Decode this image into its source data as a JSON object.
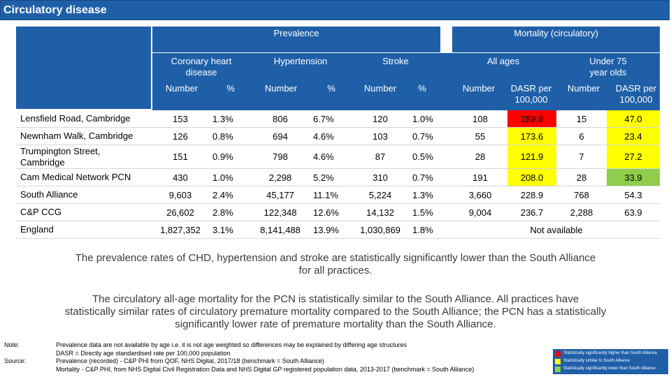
{
  "title": "Circulatory disease",
  "headers": {
    "prevalence": "Prevalence",
    "mortality": "Mortality (circulatory)",
    "chd_line1": "Coronary heart",
    "chd_line2": "disease",
    "hypertension": "Hypertension",
    "stroke": "Stroke",
    "all_ages": "All ages",
    "under75_line1": "Under 75",
    "under75_line2": "year olds",
    "number": "Number",
    "pct": "%",
    "dasr_line1": "DASR per",
    "dasr_line2": "100,000"
  },
  "colors": {
    "header_blue": "#1f5fa8",
    "significantly_higher": "#ff0000",
    "similar": "#ffff00",
    "significantly_lower": "#8fce4b"
  },
  "rows": [
    {
      "name_line1": "Lensfield Road, Cambridge",
      "name_line2": "",
      "chd_n": "153",
      "chd_p": "1.3%",
      "hyp_n": "806",
      "hyp_p": "6.7%",
      "str_n": "120",
      "str_p": "1.0%",
      "all_n": "108",
      "all_dasr": "289.8",
      "all_flag": "red",
      "u75_n": "15",
      "u75_dasr": "47.0",
      "u75_flag": "yellow"
    },
    {
      "name_line1": "Newnham Walk, Cambridge",
      "name_line2": "",
      "chd_n": "126",
      "chd_p": "0.8%",
      "hyp_n": "694",
      "hyp_p": "4.6%",
      "str_n": "103",
      "str_p": "0.7%",
      "all_n": "55",
      "all_dasr": "173.6",
      "all_flag": "yellow",
      "u75_n": "6",
      "u75_dasr": "23.4",
      "u75_flag": "yellow"
    },
    {
      "name_line1": "Trumpington Street,",
      "name_line2": "Cambridge",
      "chd_n": "151",
      "chd_p": "0.9%",
      "hyp_n": "798",
      "hyp_p": "4.6%",
      "str_n": "87",
      "str_p": "0.5%",
      "all_n": "28",
      "all_dasr": "121.9",
      "all_flag": "yellow",
      "u75_n": "7",
      "u75_dasr": "27.2",
      "u75_flag": "yellow"
    },
    {
      "name_line1": "Cam Medical Network PCN",
      "name_line2": "",
      "chd_n": "430",
      "chd_p": "1.0%",
      "hyp_n": "2,298",
      "hyp_p": "5.2%",
      "str_n": "310",
      "str_p": "0.7%",
      "all_n": "191",
      "all_dasr": "208.0",
      "all_flag": "yellow",
      "u75_n": "28",
      "u75_dasr": "33.9",
      "u75_flag": "green"
    },
    {
      "name_line1": "South Alliance",
      "name_line2": "",
      "chd_n": "9,603",
      "chd_p": "2.4%",
      "hyp_n": "45,177",
      "hyp_p": "11.1%",
      "str_n": "5,224",
      "str_p": "1.3%",
      "all_n": "3,660",
      "all_dasr": "228.9",
      "all_flag": "",
      "u75_n": "768",
      "u75_dasr": "54.3",
      "u75_flag": ""
    },
    {
      "name_line1": "C&P CCG",
      "name_line2": "",
      "chd_n": "26,602",
      "chd_p": "2.8%",
      "hyp_n": "122,348",
      "hyp_p": "12.6%",
      "str_n": "14,132",
      "str_p": "1.5%",
      "all_n": "9,004",
      "all_dasr": "236.7",
      "all_flag": "",
      "u75_n": "2,288",
      "u75_dasr": "63.9",
      "u75_flag": ""
    }
  ],
  "england": {
    "name": "England",
    "chd_n": "1,827,352",
    "chd_p": "3.1%",
    "hyp_n": "8,141,488",
    "hyp_p": "13.9%",
    "str_n": "1,030,869",
    "str_p": "1.8%",
    "not_available": "Not available"
  },
  "paragraph1_line1": "The prevalence rates of CHD, hypertension and stroke are statistically significantly lower than the South Alliance",
  "paragraph1_line2": "for all practices.",
  "paragraph2_line1": "The circulatory all-age mortality for the PCN is statistically similar to the South Alliance. All practices have",
  "paragraph2_line2": "statistically similar rates of circulatory premature mortality compared to the South Alliance; the PCN has a statistically",
  "paragraph2_line3": "significantly lower rate of premature mortality than the South Alliance.",
  "notes": {
    "note_label": "Note:",
    "source_label": "Source:",
    "line1": "Prevalence data are not available by age i.e. it is not age weighted so differences may be explained by differing age structures",
    "line2": "DASR = Directly age standardised rate per 100,000 population",
    "line3": "Prevalence (recorded) - C&P PHI from QOF, NHS Digital, 2017/18 (benchmark = South Alliance)",
    "line4": "Mortality - C&P PHI, from NHS Digital Civil Registration Data and NHS Digital GP registered population data, 2013-2017 (benchmark = South Alliance)"
  },
  "legend": {
    "higher": "Statistically significantly higher than South Alliance",
    "similar": "Statistically similar to South Alliance",
    "lower": "Statistically significantly lower than South Alliance"
  }
}
